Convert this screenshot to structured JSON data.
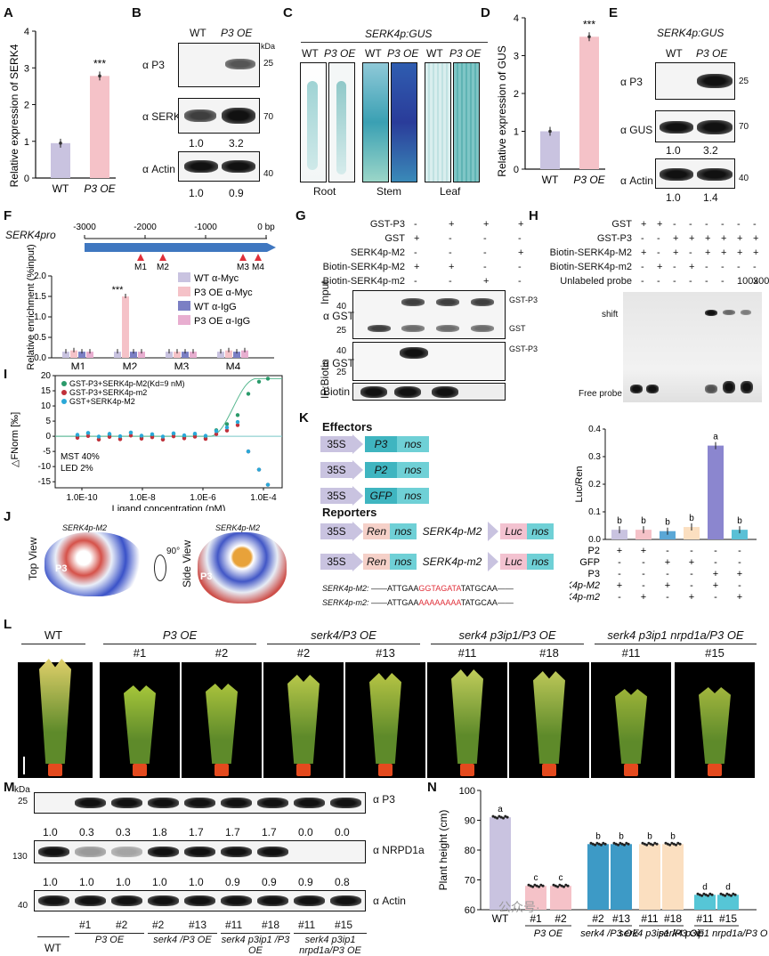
{
  "panels": {
    "A": {
      "label": "A",
      "ylabel": "Relative expression of SERK4",
      "ticks": [
        "0",
        "1",
        "2",
        "3",
        "4"
      ],
      "x": [
        "WT",
        "P3 OE"
      ],
      "sig": "***"
    },
    "B": {
      "label": "B",
      "cols": [
        "WT",
        "P3 OE"
      ],
      "rows": [
        "α P3",
        "α SERK4",
        "α Actin"
      ],
      "kda": "kDa",
      "mw": [
        "25",
        "70",
        "40"
      ],
      "q1": [
        "1.0",
        "3.2"
      ],
      "q2": [
        "1.0",
        "0.9"
      ]
    },
    "C": {
      "label": "C",
      "title": "SERK4p:GUS",
      "cols": [
        "WT",
        "P3 OE",
        "WT",
        "P3 OE",
        "WT",
        "P3 OE"
      ],
      "tissues": [
        "Root",
        "Stem",
        "Leaf"
      ]
    },
    "D": {
      "label": "D",
      "ylabel": "Relative expression of GUS",
      "ticks": [
        "0",
        "1",
        "2",
        "3",
        "4"
      ],
      "x": [
        "WT",
        "P3 OE"
      ],
      "sig": "***"
    },
    "E": {
      "label": "E",
      "title": "SERK4p:GUS",
      "cols": [
        "WT",
        "P3 OE"
      ],
      "rows": [
        "α P3",
        "α GUS",
        "α Actin"
      ],
      "mw": [
        "25",
        "70",
        "40"
      ],
      "q1": [
        "1.0",
        "3.2"
      ],
      "q2": [
        "1.0",
        "1.4"
      ]
    },
    "F": {
      "label": "F",
      "promoter": "SERK4pro",
      "scale": [
        "-3000",
        "-2000",
        "-1000",
        "0 bp"
      ],
      "sites": [
        "M1",
        "M2",
        "M3",
        "M4"
      ],
      "ylabel": "Relative enrichment (%input)",
      "ticks": [
        "0.0",
        "0.5",
        "1.0",
        "1.5",
        "2.0"
      ],
      "legend": [
        "WT α-Myc",
        "P3 OE α-Myc",
        "WT α-IgG",
        "P3 OE α-IgG"
      ],
      "sig": "***"
    },
    "G": {
      "label": "G",
      "rows": [
        "GST-P3",
        "GST",
        "SERK4p-M2",
        "Biotin-SERK4p-M2",
        "Biotin-SERK4p-m2"
      ],
      "vals": [
        [
          "-",
          "+",
          "+",
          "+"
        ],
        [
          "+",
          "-",
          "-",
          "-"
        ],
        [
          "-",
          "-",
          "-",
          "+"
        ],
        [
          "+",
          "+",
          "-",
          "-"
        ],
        [
          "-",
          "-",
          "+",
          "-"
        ]
      ],
      "input": "Input",
      "ip": "IP:Biotin",
      "agst": "α GST",
      "biotin": "Biotin",
      "gstp3": "GST-P3",
      "gst": "GST",
      "mw": [
        "40",
        "25",
        "40",
        "25"
      ]
    },
    "H": {
      "label": "H",
      "rows": [
        "GST",
        "GST-P3",
        "Biotin-SERK4p-M2",
        "Biotin-SERK4p-m2",
        "Unlabeled probe"
      ],
      "vals": [
        [
          "+",
          "+",
          "-",
          "-",
          "-",
          "-",
          "-",
          "-"
        ],
        [
          "-",
          "-",
          "+",
          "+",
          "+",
          "+",
          "+",
          "+"
        ],
        [
          "+",
          "-",
          "+",
          "-",
          "+",
          "+",
          "+",
          "+"
        ],
        [
          "-",
          "+",
          "-",
          "+",
          "-",
          "-",
          "-",
          "-"
        ],
        [
          "-",
          "-",
          "-",
          "-",
          "-",
          "-",
          "100x",
          "300x"
        ]
      ],
      "shift": "shift",
      "free": "Free probe"
    },
    "I": {
      "label": "I",
      "legend": [
        "GST-P3+SERK4p-M2(Kd=9 nM)",
        "GST-P3+SERK4p-m2",
        "GST+SERK4p-M2"
      ],
      "ylabel": "△FNorm [‰]",
      "xlabel": "Ligand concentration (nM)",
      "yticks": [
        "20",
        "15",
        "10",
        "5",
        "0",
        "-5",
        "-10",
        "-15"
      ],
      "xticks": [
        "1.0E-10",
        "1.0E-8",
        "1.0E-6",
        "1.0E-4"
      ],
      "note1": "MST 40%",
      "note2": "LED 2%"
    },
    "J": {
      "label": "J",
      "top": "Top View",
      "side": "Side View",
      "m2a": "SERK4p-M2",
      "m2b": "SERK4p-M2",
      "p3": "P3",
      "rot": "90°"
    },
    "K": {
      "label": "K",
      "effectors": "Effectors",
      "reporters": "Reporters",
      "p35": "35S",
      "nos": "nos",
      "genes": [
        "P3",
        "P2",
        "GFP"
      ],
      "ren": "Ren",
      "luc": "Luc",
      "m2": "SERK4p-M2",
      "m2l": "SERK4p-m2",
      "seqM2a": "SERK4p-M2:",
      "seqM2b": "ATTGAA",
      "seqM2c": "GGTAGATA",
      "seqM2d": "TATGCAA",
      "seqm2a": "SERK4p-m2:",
      "seqm2b": "ATTGAA",
      "seqm2c": "AAAAAAAA",
      "seqm2d": "TATGCAA",
      "ylabel": "Luc/Ren",
      "yticks": [
        "0.0",
        "0.1",
        "0.2",
        "0.3",
        "0.4"
      ],
      "letters": [
        "b",
        "b",
        "b",
        "b",
        "a",
        "b"
      ],
      "trows": [
        "P2",
        "GFP",
        "P3",
        "SERK4p-M2",
        "SERK4p-m2"
      ],
      "tvals": [
        [
          "+",
          "+",
          "-",
          "-",
          "-",
          "-"
        ],
        [
          "-",
          "-",
          "+",
          "+",
          "-",
          "-"
        ],
        [
          "-",
          "-",
          "-",
          "-",
          "+",
          "+"
        ],
        [
          "+",
          "-",
          "+",
          "-",
          "+",
          "-"
        ],
        [
          "-",
          "+",
          "-",
          "+",
          "-",
          "+"
        ]
      ]
    },
    "L": {
      "label": "L",
      "groups": [
        "WT",
        "P3 OE",
        "serk4/P3 OE",
        "serk4 p3ip1/P3 OE",
        "serk4 p3ip1 nrpd1a/P3 OE"
      ],
      "lines": [
        "#1",
        "#2",
        "#2",
        "#13",
        "#11",
        "#18",
        "#11",
        "#15"
      ]
    },
    "M": {
      "label": "M",
      "kda": "kDa",
      "rows": [
        "α P3",
        "α NRPD1a",
        "α Actin"
      ],
      "mw": [
        "25",
        "130",
        "40"
      ],
      "q1": [
        "1.0",
        "0.3",
        "0.3",
        "1.8",
        "1.7",
        "1.7",
        "1.7",
        "0.0",
        "0.0"
      ],
      "q2": [
        "1.0",
        "1.0",
        "1.0",
        "1.0",
        "1.0",
        "0.9",
        "0.9",
        "0.9",
        "0.8"
      ],
      "lines": [
        "#1",
        "#2",
        "#2",
        "#13",
        "#11",
        "#18",
        "#11",
        "#15"
      ],
      "groups": [
        "WT",
        "P3 OE",
        "serk4 /P3 OE",
        "serk4 p3ip1 /P3 OE",
        "serk4 p3ip1 nrpd1a/P3 OE"
      ]
    },
    "N": {
      "label": "N",
      "ylabel": "Plant height (cm)",
      "yticks": [
        "60",
        "70",
        "80",
        "90",
        "100"
      ],
      "letters": [
        "a",
        "c",
        "c",
        "b",
        "b",
        "b",
        "b",
        "d",
        "d"
      ],
      "x": [
        "WT",
        "#1",
        "#2",
        "#2",
        "#13",
        "#11",
        "#18",
        "#11",
        "#15"
      ],
      "g": [
        "P3 OE",
        "serk4 /P3 OE",
        "serk4 p3ip1 /P3 OE",
        "serk4 p3ip1 nrpd1a/P3 OE"
      ],
      "watermark": "公众号·"
    }
  },
  "chart_data": [
    {
      "type": "bar",
      "title": "A",
      "categories": [
        "WT",
        "P3 OE"
      ],
      "values": [
        0.95,
        2.78
      ],
      "ylabel": "Relative expression of SERK4",
      "ylim": [
        0,
        4
      ],
      "colors": [
        "#c9c3e0",
        "#f5c2c8"
      ]
    },
    {
      "type": "bar",
      "title": "D",
      "categories": [
        "WT",
        "P3 OE"
      ],
      "values": [
        1.0,
        3.5
      ],
      "ylabel": "Relative expression of GUS",
      "ylim": [
        0,
        4
      ],
      "colors": [
        "#c9c3e0",
        "#f5c2c8"
      ]
    },
    {
      "type": "bar",
      "title": "F",
      "categories": [
        "M1",
        "M2",
        "M3",
        "M4"
      ],
      "series": [
        {
          "name": "WT α-Myc",
          "values": [
            0.15,
            0.15,
            0.15,
            0.15
          ]
        },
        {
          "name": "P3 OE α-Myc",
          "values": [
            0.18,
            1.5,
            0.15,
            0.18
          ]
        },
        {
          "name": "WT α-IgG",
          "values": [
            0.15,
            0.15,
            0.15,
            0.15
          ]
        },
        {
          "name": "P3 OE α-IgG",
          "values": [
            0.15,
            0.15,
            0.15,
            0.18
          ]
        }
      ],
      "ylim": [
        0,
        2
      ],
      "colors": [
        "#c9c3e0",
        "#f5c2c8",
        "#7b7fc4",
        "#e8aed0"
      ]
    },
    {
      "type": "bar",
      "title": "K",
      "categories": [
        "1",
        "2",
        "3",
        "4",
        "5",
        "6"
      ],
      "values": [
        0.035,
        0.035,
        0.03,
        0.045,
        0.34,
        0.035
      ],
      "ylabel": "Luc/Ren",
      "ylim": [
        0,
        0.4
      ],
      "colors": [
        "#c9c3e0",
        "#f5c2c8",
        "#5aa7d6",
        "#fbdfc0",
        "#8b86cf",
        "#5ac0d6"
      ]
    },
    {
      "type": "bar",
      "title": "N",
      "categories": [
        "WT",
        "#1",
        "#2",
        "#2",
        "#13",
        "#11",
        "#18",
        "#11",
        "#15"
      ],
      "values": [
        91,
        68,
        68,
        82,
        82,
        82,
        82,
        65,
        65
      ],
      "ylabel": "Plant height (cm)",
      "ylim": [
        60,
        100
      ],
      "colors": [
        "#c9c3e0",
        "#f5c2c8",
        "#f5c2c8",
        "#3d9ac6",
        "#3d9ac6",
        "#fbdfc0",
        "#fbdfc0",
        "#56c6d6",
        "#56c6d6"
      ]
    }
  ]
}
